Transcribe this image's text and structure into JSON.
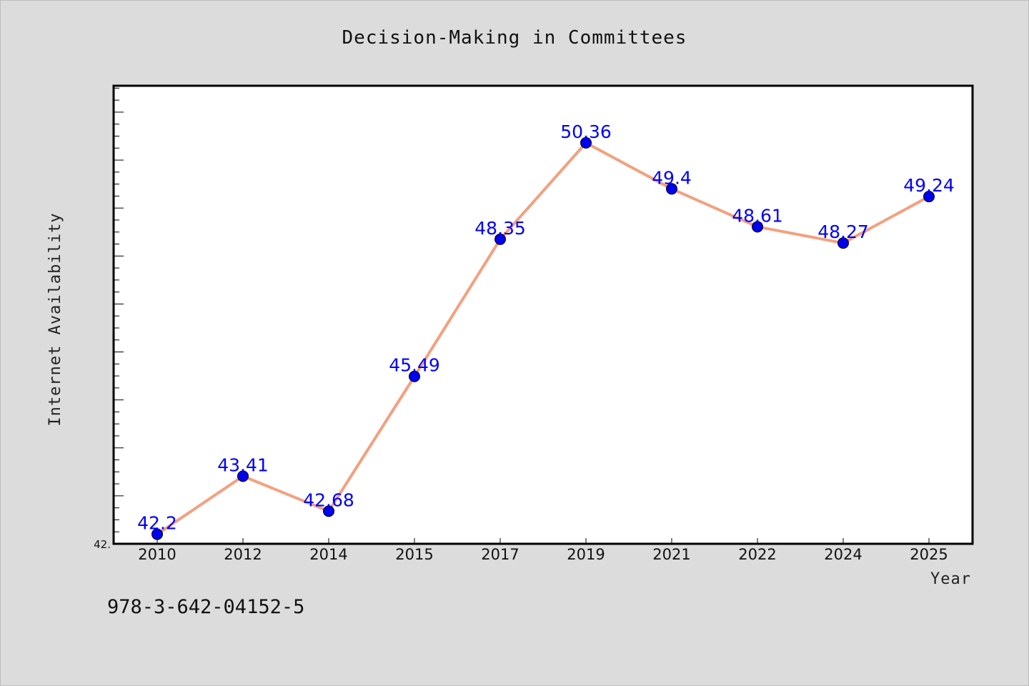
{
  "chart_data": {
    "type": "line",
    "title": "Decision-Making in Committees",
    "xlabel": "Year",
    "ylabel": "Internet Availability",
    "categories": [
      "2010",
      "2012",
      "2014",
      "2015",
      "2017",
      "2019",
      "2021",
      "2022",
      "2024",
      "2025"
    ],
    "series": [
      {
        "values": [
          42.2,
          43.41,
          42.68,
          45.49,
          48.35,
          50.36,
          49.4,
          48.61,
          48.27,
          49.24
        ]
      }
    ],
    "data_labels": [
      "42.2",
      "43.41",
      "42.68",
      "45.49",
      "48.35",
      "50.36",
      "49.4",
      "48.61",
      "48.27",
      "49.24"
    ],
    "ylim": [
      42.0,
      51.55
    ],
    "y_min_label": "42.",
    "grid": false,
    "legend": "none",
    "colors": {
      "line": "#f4a07f",
      "marker": "#0000ee",
      "marker_edge": "#000000",
      "data_label": "#0000ff",
      "plot_bg": "#ffffff",
      "page_bg": "#dcdcdc"
    }
  },
  "footer": {
    "isbn": "978-3-642-04152-5"
  }
}
